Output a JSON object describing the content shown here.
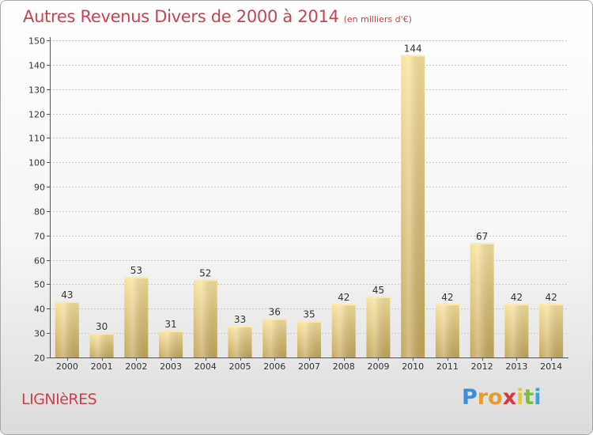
{
  "header": {
    "title": "Autres Revenus Divers de 2000 à 2014",
    "subtitle": "(en milliers d'€)"
  },
  "footer": {
    "commune": "LIGNIèRES",
    "logo_letters": [
      "P",
      "r",
      "o",
      "x",
      "i",
      "t",
      "i"
    ],
    "logo_colors": [
      "#3a8fd8",
      "#e89a2c",
      "#e89a2c",
      "#d9363e",
      "#e8c92c",
      "#7cbf3a",
      "#3aa6d8"
    ]
  },
  "colors": {
    "title": "#d0404b",
    "bar_light": "#f7e09a",
    "bar_dark": "#c8ac60",
    "grid": "#c7c7c7"
  },
  "chart_data": {
    "type": "bar",
    "title": "Autres Revenus Divers de 2000 à 2014",
    "subtitle": "(en milliers d'€)",
    "xlabel": "",
    "ylabel": "",
    "categories": [
      "2000",
      "2001",
      "2002",
      "2003",
      "2004",
      "2005",
      "2006",
      "2007",
      "2008",
      "2009",
      "2010",
      "2011",
      "2012",
      "2013",
      "2014"
    ],
    "values": [
      43,
      30,
      53,
      31,
      52,
      33,
      36,
      35,
      42,
      45,
      144,
      42,
      67,
      42,
      42
    ],
    "ylim": [
      20,
      150
    ],
    "yticks": [
      20,
      30,
      40,
      50,
      60,
      70,
      80,
      90,
      100,
      110,
      120,
      130,
      140,
      150
    ],
    "grid": true,
    "legend": "none"
  }
}
